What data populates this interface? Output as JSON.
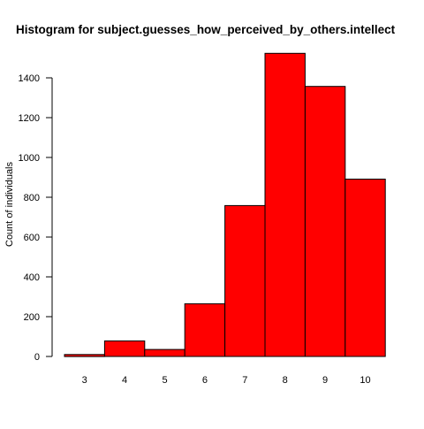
{
  "chart_data": {
    "type": "bar",
    "title": "Histogram for subject.guesses_how_perceived_by_others.intellect",
    "xlabel": "",
    "ylabel": "Count of individuals",
    "categories": [
      "3",
      "4",
      "5",
      "6",
      "7",
      "8",
      "9",
      "10"
    ],
    "values": [
      10,
      78,
      35,
      265,
      758,
      1523,
      1357,
      891
    ],
    "ylim": [
      0,
      1500
    ],
    "yticks": [
      0,
      200,
      400,
      600,
      800,
      1000,
      1200,
      1400
    ],
    "grid": false,
    "legend": "none",
    "bar_color": "#ff0000",
    "bar_border_color": "#000000"
  }
}
